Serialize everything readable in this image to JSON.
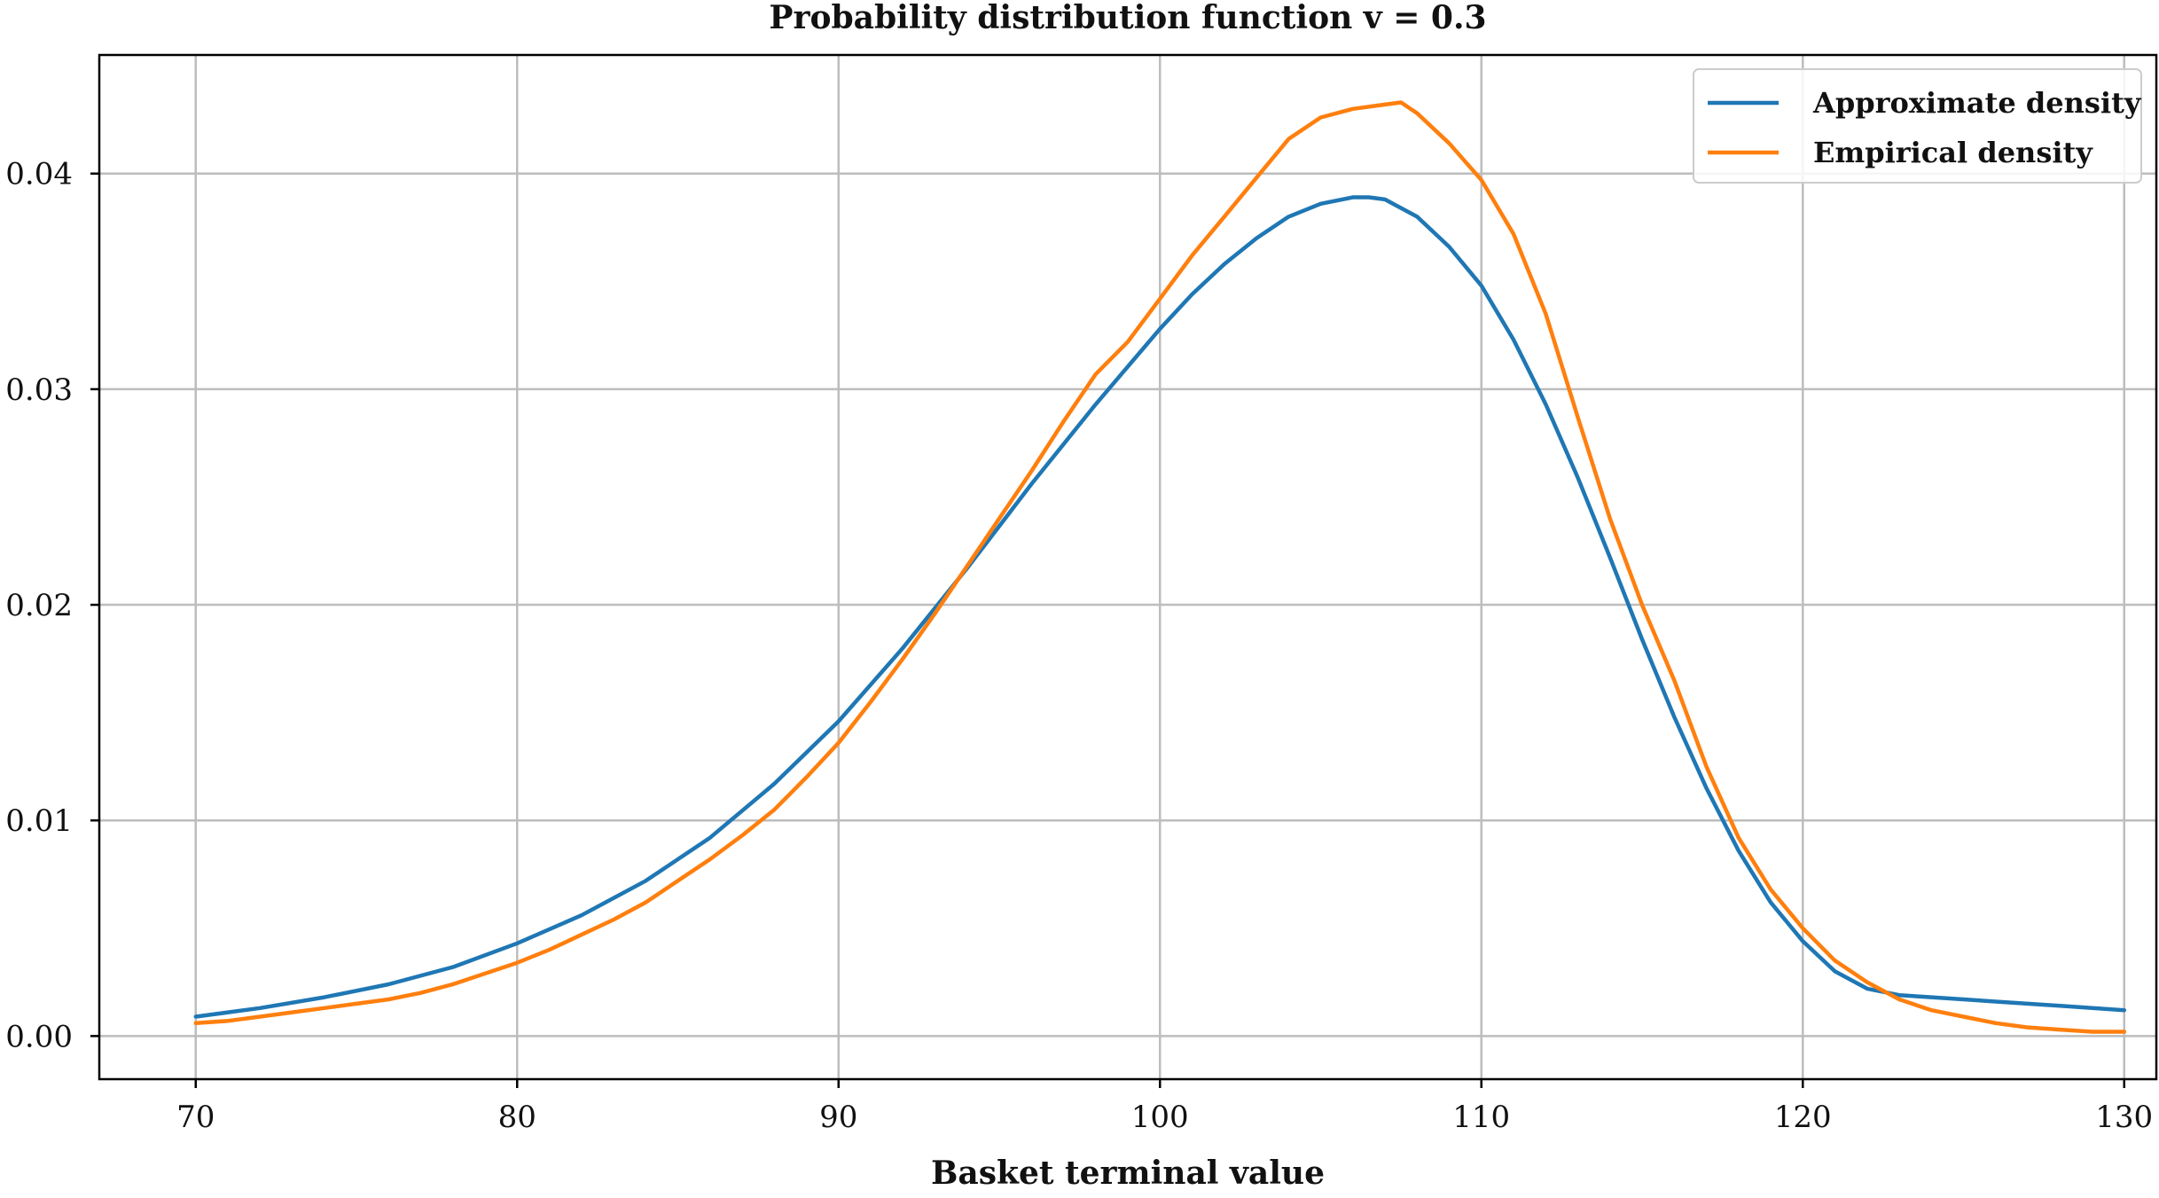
{
  "chart_data": {
    "type": "line",
    "title": "Probability distribution function v = 0.3",
    "xlabel": "Basket terminal value",
    "ylabel": "",
    "xlim": [
      67,
      131
    ],
    "ylim": [
      -0.002,
      0.0455
    ],
    "xticks": [
      70,
      80,
      90,
      100,
      110,
      120,
      130
    ],
    "yticks": [
      0.0,
      0.01,
      0.02,
      0.03,
      0.04
    ],
    "xtick_labels": [
      "70",
      "80",
      "90",
      "100",
      "110",
      "120",
      "130"
    ],
    "ytick_labels": [
      "0.00",
      "0.01",
      "0.02",
      "0.03",
      "0.04"
    ],
    "grid": true,
    "legend_position": "top-right",
    "series": [
      {
        "name": "Approximate density",
        "color": "#1f77b4",
        "x": [
          70,
          72,
          74,
          76,
          78,
          80,
          82,
          84,
          86,
          88,
          90,
          92,
          94,
          96,
          98,
          100,
          101,
          102,
          103,
          104,
          105,
          106,
          106.5,
          107,
          108,
          109,
          110,
          111,
          112,
          113,
          114,
          115,
          116,
          117,
          118,
          119,
          120,
          121,
          122,
          123,
          124,
          125,
          126,
          127,
          128,
          129,
          130
        ],
        "y": [
          0.0009,
          0.0013,
          0.0018,
          0.0024,
          0.0032,
          0.0043,
          0.0056,
          0.0072,
          0.0092,
          0.0117,
          0.0146,
          0.018,
          0.0217,
          0.0256,
          0.0293,
          0.0328,
          0.0344,
          0.0358,
          0.037,
          0.038,
          0.0386,
          0.0389,
          0.0389,
          0.0388,
          0.038,
          0.0366,
          0.0348,
          0.0323,
          0.0293,
          0.0259,
          0.0222,
          0.0184,
          0.0148,
          0.0115,
          0.0086,
          0.0062,
          0.0044,
          0.003,
          0.0022,
          0.0019,
          0.0018,
          0.0017,
          0.0016,
          0.0015,
          0.0014,
          0.0013,
          0.0012
        ]
      },
      {
        "name": "Empirical density",
        "color": "#ff7f0e",
        "x": [
          70,
          71,
          72,
          73,
          74,
          75,
          76,
          77,
          78,
          79,
          80,
          81,
          82,
          83,
          84,
          85,
          86,
          87,
          88,
          89,
          90,
          91,
          92,
          93,
          94,
          95,
          96,
          97,
          98,
          99,
          100,
          101,
          102,
          103,
          104,
          105,
          106,
          107,
          107.5,
          108,
          109,
          110,
          111,
          112,
          113,
          114,
          115,
          116,
          117,
          118,
          119,
          120,
          121,
          122,
          123,
          124,
          125,
          126,
          127,
          128,
          129,
          130
        ],
        "y": [
          0.0006,
          0.0007,
          0.0009,
          0.0011,
          0.0013,
          0.0015,
          0.0017,
          0.002,
          0.0024,
          0.0029,
          0.0034,
          0.004,
          0.0047,
          0.0054,
          0.0062,
          0.0072,
          0.0082,
          0.0093,
          0.0105,
          0.012,
          0.0136,
          0.0155,
          0.0175,
          0.0196,
          0.0218,
          0.024,
          0.0262,
          0.0285,
          0.0307,
          0.0322,
          0.0342,
          0.0362,
          0.038,
          0.0398,
          0.0416,
          0.0426,
          0.043,
          0.0432,
          0.0433,
          0.0428,
          0.0414,
          0.0397,
          0.0372,
          0.0335,
          0.0287,
          0.024,
          0.02,
          0.0165,
          0.0125,
          0.0092,
          0.0068,
          0.005,
          0.0035,
          0.0025,
          0.0017,
          0.0012,
          0.0009,
          0.0006,
          0.0004,
          0.0003,
          0.0002,
          0.0002
        ]
      }
    ]
  }
}
